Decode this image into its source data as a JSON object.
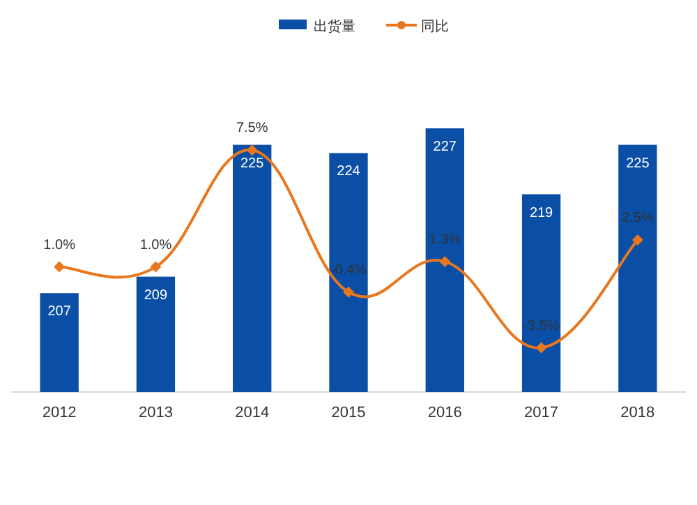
{
  "chart_data": {
    "type": "bar",
    "categories": [
      "2012",
      "2013",
      "2014",
      "2015",
      "2016",
      "2017",
      "2018"
    ],
    "series": [
      {
        "name": "出货量",
        "color": "#0a4ea6",
        "values": [
          207,
          209,
          225,
          224,
          227,
          219,
          225
        ],
        "value_labels": [
          "207",
          "209",
          "225",
          "224",
          "227",
          "219",
          "225"
        ]
      },
      {
        "name": "同比",
        "type": "line",
        "axis": "y2",
        "color": "#e8771e",
        "marker": "diamond",
        "values": [
          1.0,
          1.0,
          7.5,
          -0.4,
          1.3,
          -3.5,
          2.5
        ],
        "value_labels": [
          "1.0%",
          "1.0%",
          "7.5%",
          "-0.4%",
          "1.3%",
          "-3.5%",
          "2.5%"
        ]
      }
    ],
    "ylim": [
      195,
      227
    ],
    "legend": "top"
  }
}
